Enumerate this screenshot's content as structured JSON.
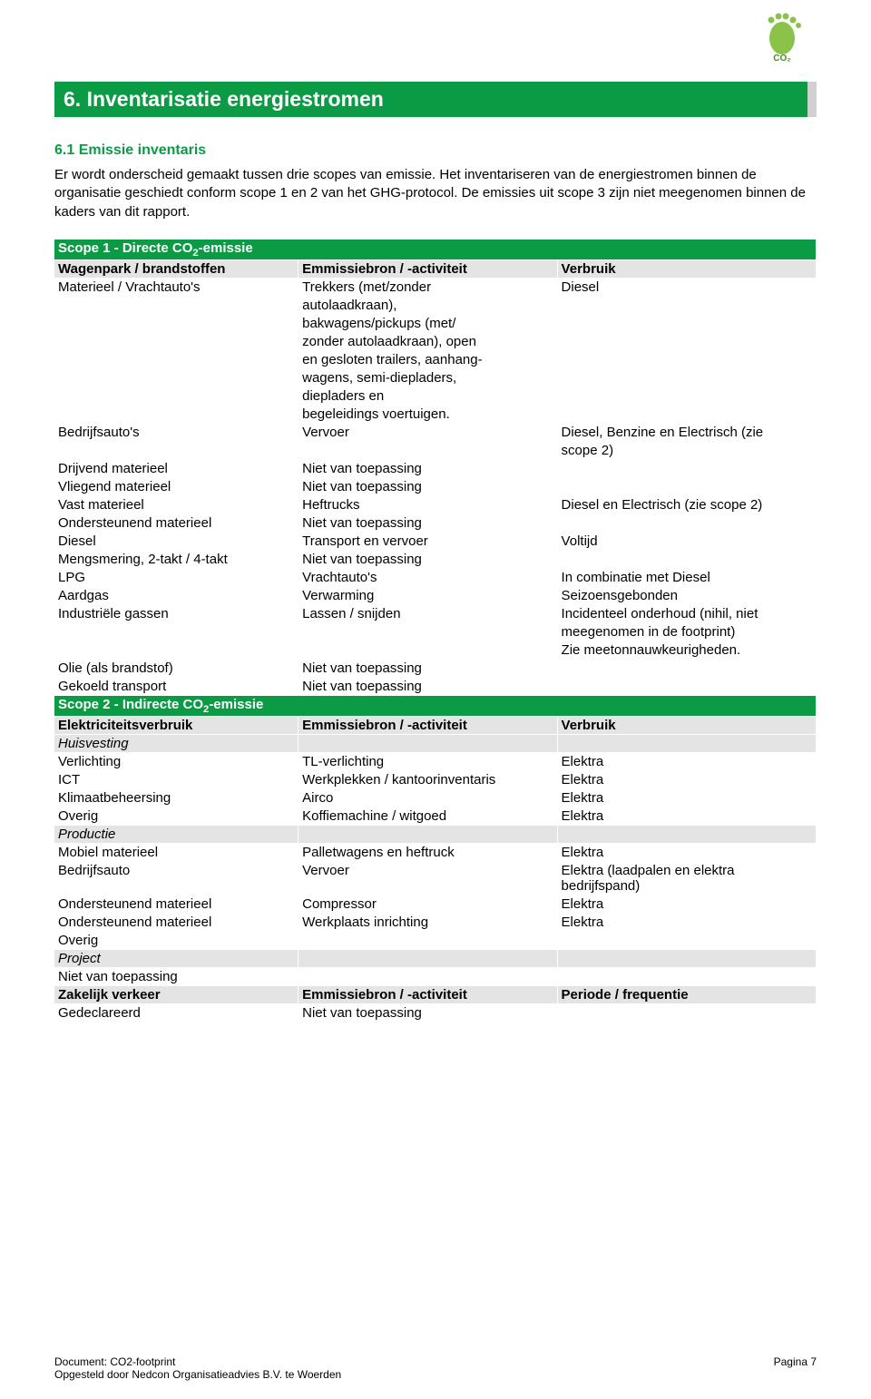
{
  "colors": {
    "brand_green": "#0b9b45",
    "light_grey": "#e4e4e4",
    "border_grey": "#d0d0d0",
    "foot_green": "#8bc34a"
  },
  "logo": {
    "text": "CO₂"
  },
  "heading": "6. Inventarisatie energiestromen",
  "subheading": "6.1 Emissie inventaris",
  "paragraph": "Er wordt onderscheid gemaakt tussen drie scopes van emissie. Het inventariseren van de energiestromen binnen de organisatie geschiedt conform scope 1 en 2 van het GHG-protocol. De emissies uit scope 3 zijn niet meegenomen binnen de kaders van dit rapport.",
  "scope1_title_pre": "Scope 1 - Directe CO",
  "scope1_title_sub": "2",
  "scope1_title_post": "-emissie",
  "scope1_col1": "Wagenpark / brandstoffen",
  "scope1_col2": "Emmissiebron / -activiteit",
  "scope1_col3": "Verbruik",
  "scope1_rows": [
    [
      "Materieel / Vrachtauto's",
      "Trekkers (met/zonder",
      "Diesel"
    ],
    [
      "",
      " autolaadkraan),",
      ""
    ],
    [
      "",
      "bakwagens/pickups (met/",
      ""
    ],
    [
      "",
      "zonder autolaadkraan), open",
      ""
    ],
    [
      "",
      "en gesloten trailers, aanhang-",
      ""
    ],
    [
      "",
      "wagens, semi-diepladers,",
      ""
    ],
    [
      "",
      "diepladers en",
      ""
    ],
    [
      "",
      "begeleidings voertuigen.",
      ""
    ],
    [
      "Bedrijfsauto's",
      "Vervoer",
      "Diesel, Benzine en Electrisch (zie"
    ],
    [
      "",
      "",
      "scope 2)"
    ],
    [
      "Drijvend materieel",
      "Niet van toepassing",
      ""
    ],
    [
      "Vliegend materieel",
      "Niet van toepassing",
      ""
    ],
    [
      "Vast materieel",
      "Heftrucks",
      "Diesel en Electrisch (zie scope 2)"
    ],
    [
      "Ondersteunend materieel",
      "Niet van toepassing",
      ""
    ],
    [
      "Diesel",
      "Transport en vervoer",
      "Voltijd"
    ],
    [
      "Mengsmering, 2-takt / 4-takt",
      "Niet van toepassing",
      ""
    ],
    [
      "LPG",
      "Vrachtauto's",
      "In combinatie met Diesel"
    ],
    [
      "Aardgas",
      "Verwarming",
      "Seizoensgebonden"
    ],
    [
      "Industriële gassen",
      "Lassen / snijden",
      "Incidenteel onderhoud (nihil, niet"
    ],
    [
      "",
      "",
      "meegenomen in de footprint)"
    ],
    [
      "",
      "",
      "Zie meetonnauwkeurigheden."
    ],
    [
      "Olie (als brandstof)",
      "Niet van toepassing",
      ""
    ],
    [
      "Gekoeld transport",
      "Niet van toepassing",
      ""
    ]
  ],
  "scope2_title_pre": "Scope 2 - Indirecte CO",
  "scope2_title_sub": "2",
  "scope2_title_post": "-emissie",
  "scope2_col1": "Elektriciteitsverbruik",
  "scope2_col2": "Emmissiebron / -activiteit",
  "scope2_col3": "Verbruik",
  "scope2_rows": [
    {
      "type": "italic",
      "cells": [
        "Huisvesting",
        "",
        ""
      ]
    },
    {
      "type": "normal",
      "cells": [
        "Verlichting",
        "TL-verlichting",
        "Elektra"
      ]
    },
    {
      "type": "normal",
      "cells": [
        "ICT",
        "Werkplekken / kantoorinventaris",
        "Elektra"
      ]
    },
    {
      "type": "normal",
      "cells": [
        "Klimaatbeheersing",
        "Airco",
        "Elektra"
      ]
    },
    {
      "type": "normal",
      "cells": [
        "Overig",
        "Koffiemachine / witgoed",
        "Elektra"
      ]
    },
    {
      "type": "italic",
      "cells": [
        "Productie",
        "",
        ""
      ]
    },
    {
      "type": "normal",
      "cells": [
        "Mobiel materieel",
        "Palletwagens en heftruck",
        "Elektra"
      ]
    },
    {
      "type": "normal",
      "cells": [
        "Bedrijfsauto",
        "Vervoer",
        "Elektra (laadpalen en elektra bedrijfspand)"
      ]
    },
    {
      "type": "normal",
      "cells": [
        "Ondersteunend materieel",
        "Compressor",
        "Elektra"
      ]
    },
    {
      "type": "normal",
      "cells": [
        "Ondersteunend materieel",
        "Werkplaats inrichting",
        "Elektra"
      ]
    },
    {
      "type": "normal",
      "cells": [
        "Overig",
        "",
        ""
      ]
    },
    {
      "type": "italic",
      "cells": [
        "Project",
        "",
        ""
      ]
    },
    {
      "type": "normal",
      "cells": [
        "Niet van toepassing",
        "",
        ""
      ]
    }
  ],
  "scope2b_col1": "Zakelijk verkeer",
  "scope2b_col2": "Emmissiebron / -activiteit",
  "scope2b_col3": "Periode / frequentie",
  "scope2b_rows": [
    [
      "Gedeclareerd",
      "Niet van toepassing",
      ""
    ],
    [
      "",
      "",
      ""
    ]
  ],
  "footer_doc": "Document: CO2-footprint",
  "footer_author": "Opgesteld door Nedcon Organisatieadvies B.V. te Woerden",
  "footer_page": "Pagina 7"
}
